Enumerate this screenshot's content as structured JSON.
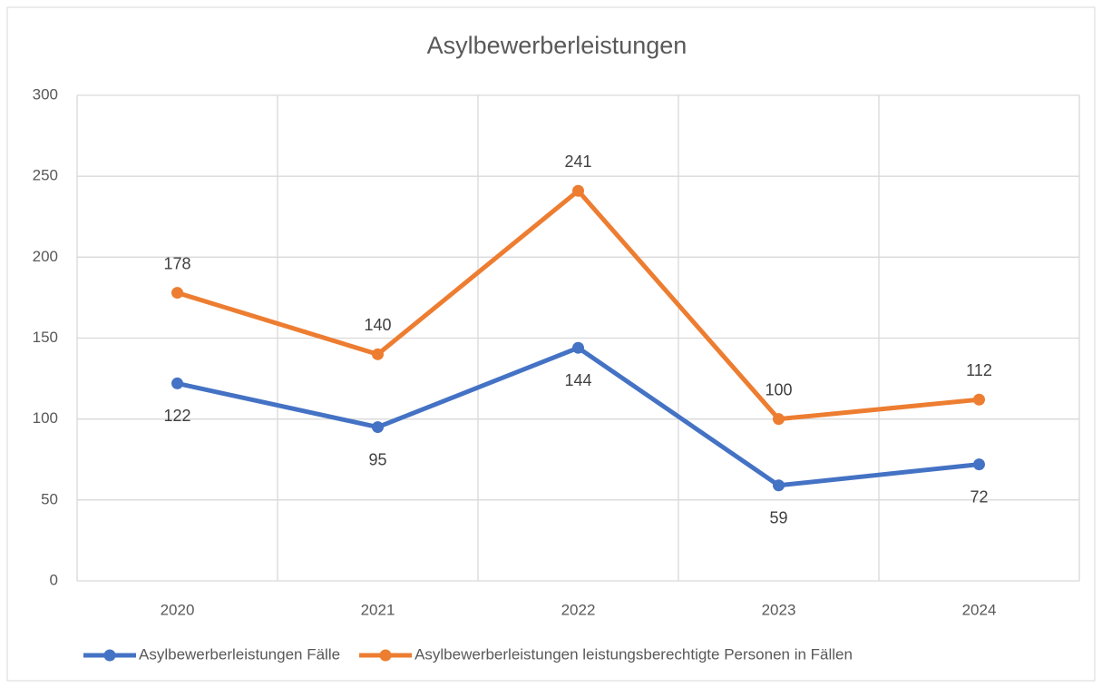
{
  "chart_data": {
    "type": "line",
    "title": "Asylbewerberleistungen",
    "categories": [
      "2020",
      "2021",
      "2022",
      "2023",
      "2024"
    ],
    "series": [
      {
        "name": "Asylbewerberleistungen Fälle",
        "color": "#4472c4",
        "values": [
          122,
          95,
          144,
          59,
          72
        ]
      },
      {
        "name": "Asylbewerberleistungen leistungsberechtigte Personen in Fällen",
        "color": "#ed7d31",
        "values": [
          178,
          140,
          241,
          100,
          112
        ]
      }
    ],
    "ylim": [
      0,
      300
    ],
    "yticks": [
      0,
      50,
      100,
      150,
      200,
      250,
      300
    ],
    "grid": true,
    "legend": "bottom"
  }
}
